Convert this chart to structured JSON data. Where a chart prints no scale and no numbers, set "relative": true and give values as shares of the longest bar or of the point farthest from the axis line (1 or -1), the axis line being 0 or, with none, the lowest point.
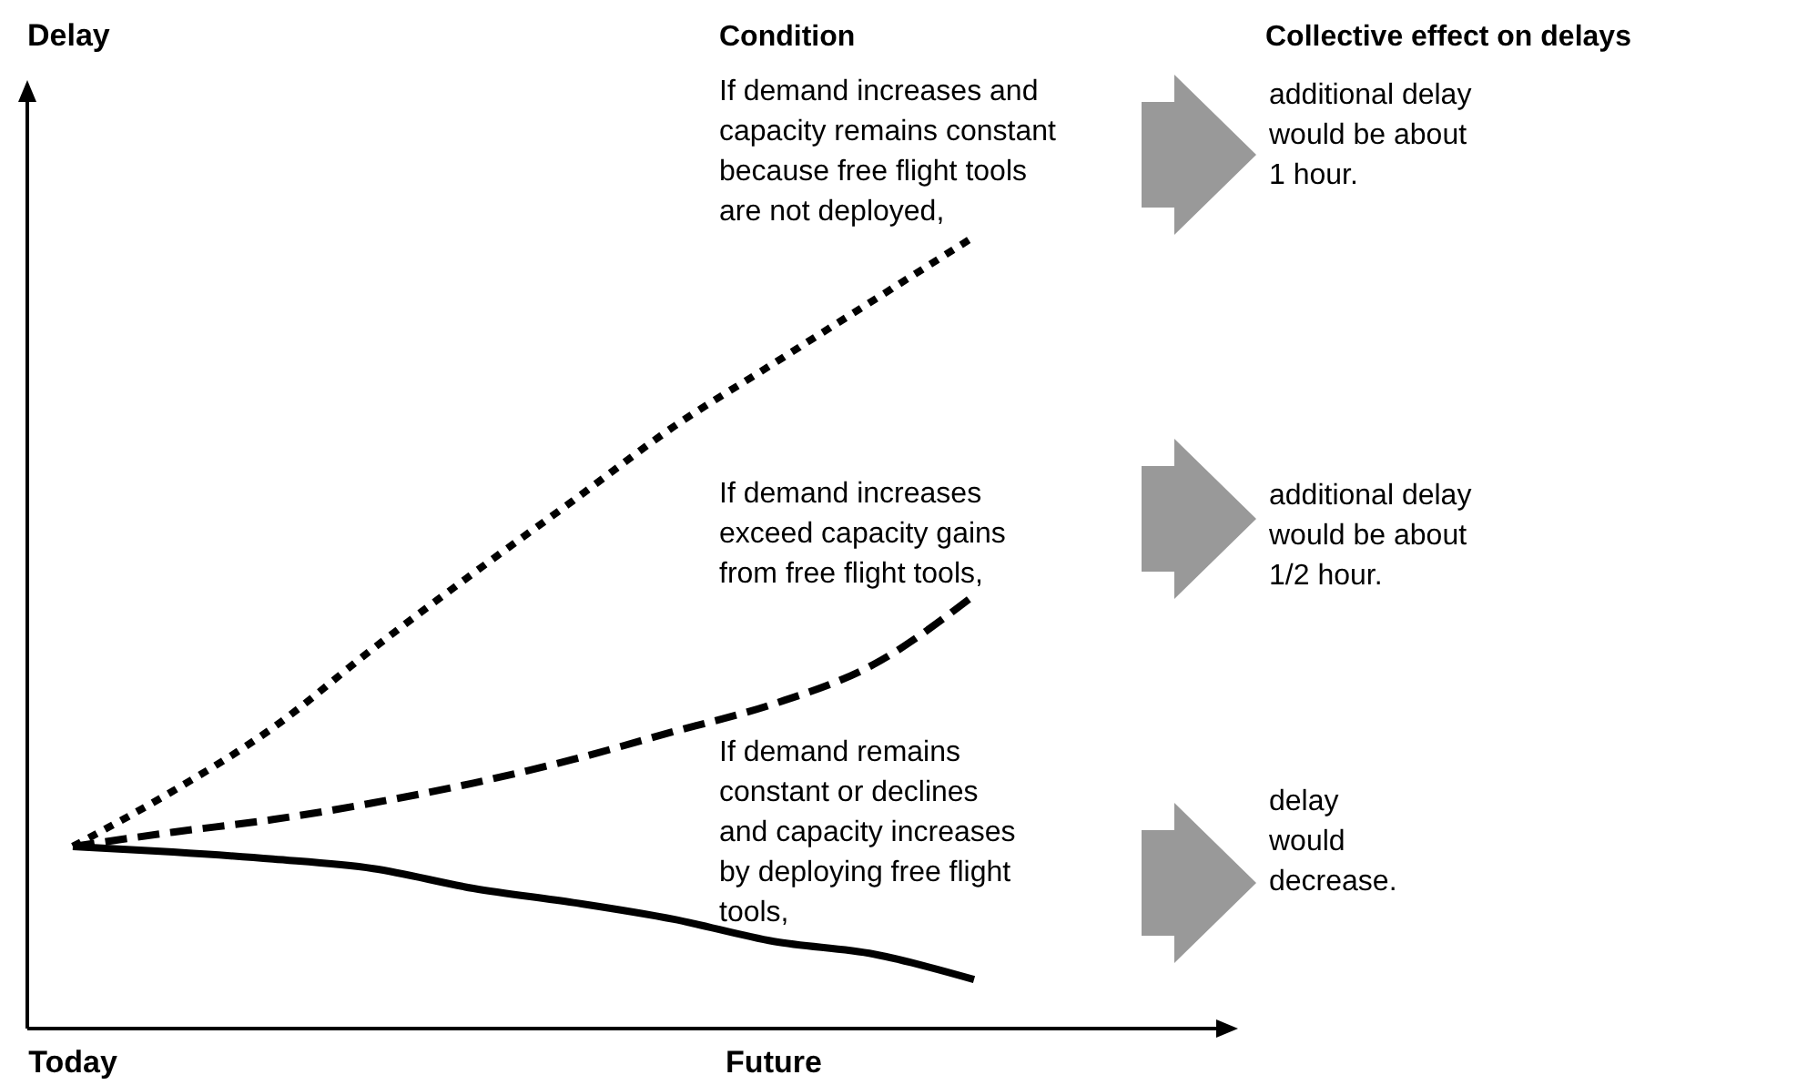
{
  "chart_data": {
    "type": "line",
    "relative": true,
    "legend": false,
    "grid": false,
    "categories": [
      "Today",
      null,
      null,
      null,
      null,
      null,
      null,
      "Future",
      null,
      null,
      null,
      null
    ],
    "series": [
      {
        "color": "#000000",
        "line_style": "dotted",
        "values": [
          0.23,
          0.3,
          0.38,
          0.48,
          0.575,
          0.667,
          0.76,
          0.84,
          0.92,
          1,
          null,
          null
        ]
      },
      {
        "color": "#000000",
        "line_style": "dashed",
        "values": [
          0.23,
          0.248,
          0.264,
          0.285,
          0.31,
          0.34,
          0.375,
          0.41,
          0.46,
          0.547,
          null,
          null
        ]
      },
      {
        "color": "#000000",
        "line_style": "solid",
        "values": [
          0.23,
          0.223,
          0.214,
          0.202,
          0.177,
          0.159,
          0.138,
          0.11,
          0.094,
          0.062,
          null,
          null
        ]
      }
    ],
    "annotations": [
      "Delay",
      "Condition",
      "Collective effect on delays",
      "If demand increases and\ncapacity remains constant\nbecause free flight tools\nare not deployed,",
      "If demand increases\nexceed capacity gains\nfrom free flight tools,",
      "If demand remains\nconstant or declines\nand capacity increases\nby deploying free flight\ntools,",
      "additional delay\nwould be about\n1 hour.",
      "additional delay\nwould be about\n1/2 hour.",
      "delay\nwould\ndecrease."
    ]
  }
}
